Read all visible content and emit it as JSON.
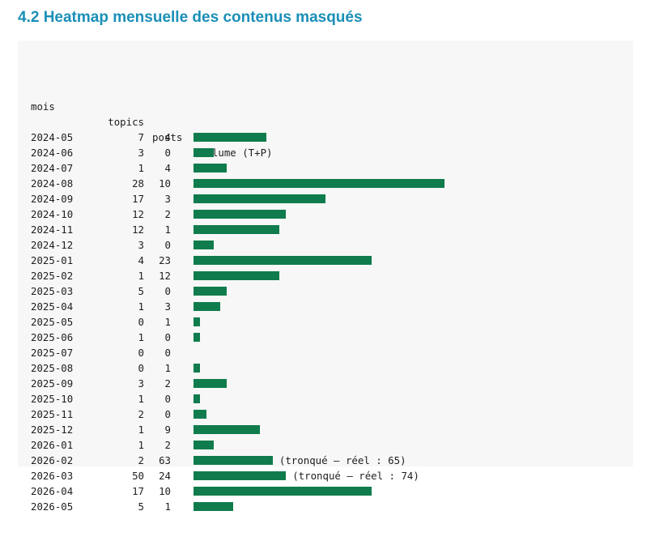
{
  "heading": "4.2 Heatmap mensuelle des contenus masqués",
  "table": {
    "header": {
      "mois": "mois",
      "topics": "topics",
      "posts": "posts",
      "volume": "volume (T+P)"
    },
    "bar_color": "#107c4d",
    "rows": [
      {
        "mois": "2024-05",
        "topics": "7",
        "posts": "4",
        "volume": 11
      },
      {
        "mois": "2024-06",
        "topics": "3",
        "posts": "0",
        "volume": 3
      },
      {
        "mois": "2024-07",
        "topics": "1",
        "posts": "4",
        "volume": 5
      },
      {
        "mois": "2024-08",
        "topics": "28",
        "posts": "10",
        "volume": 38
      },
      {
        "mois": "2024-09",
        "topics": "17",
        "posts": "3",
        "volume": 20
      },
      {
        "mois": "2024-10",
        "topics": "12",
        "posts": "2",
        "volume": 14
      },
      {
        "mois": "2024-11",
        "topics": "12",
        "posts": "1",
        "volume": 13
      },
      {
        "mois": "2024-12",
        "topics": "3",
        "posts": "0",
        "volume": 3
      },
      {
        "mois": "2025-01",
        "topics": "4",
        "posts": "23",
        "volume": 27
      },
      {
        "mois": "2025-02",
        "topics": "1",
        "posts": "12",
        "volume": 13
      },
      {
        "mois": "2025-03",
        "topics": "5",
        "posts": "0",
        "volume": 5
      },
      {
        "mois": "2025-04",
        "topics": "1",
        "posts": "3",
        "volume": 4
      },
      {
        "mois": "2025-05",
        "topics": "0",
        "posts": "1",
        "volume": 1
      },
      {
        "mois": "2025-06",
        "topics": "1",
        "posts": "0",
        "volume": 1
      },
      {
        "mois": "2025-07",
        "topics": "0",
        "posts": "0",
        "volume": 0
      },
      {
        "mois": "2025-08",
        "topics": "0",
        "posts": "1",
        "volume": 1
      },
      {
        "mois": "2025-09",
        "topics": "3",
        "posts": "2",
        "volume": 5
      },
      {
        "mois": "2025-10",
        "topics": "1",
        "posts": "0",
        "volume": 1
      },
      {
        "mois": "2025-11",
        "topics": "2",
        "posts": "0",
        "volume": 2
      },
      {
        "mois": "2025-12",
        "topics": "1",
        "posts": "9",
        "volume": 10
      },
      {
        "mois": "2026-01",
        "topics": "1",
        "posts": "2",
        "volume": 3
      },
      {
        "mois": "2026-02",
        "topics": "2",
        "posts": "63",
        "volume": 12,
        "note": "(tronqué — réel : 65)"
      },
      {
        "mois": "2026-03",
        "topics": "50",
        "posts": "24",
        "volume": 14,
        "note": "(tronqué — réel : 74)"
      },
      {
        "mois": "2026-04",
        "topics": "17",
        "posts": "10",
        "volume": 27
      },
      {
        "mois": "2026-05",
        "topics": "5",
        "posts": "1",
        "volume": 6
      }
    ]
  }
}
